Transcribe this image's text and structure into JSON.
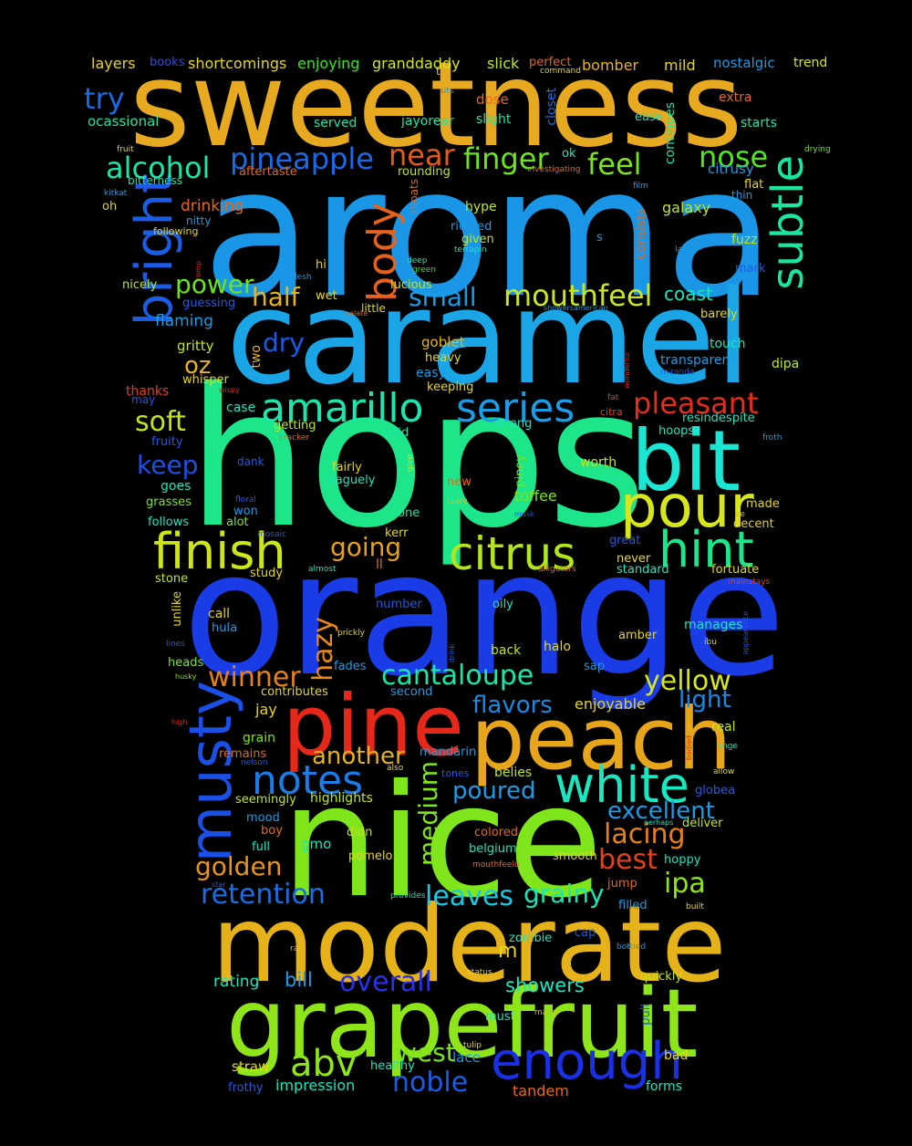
{
  "words": {
    "sweetness": {
      "text": "sweetness",
      "color": "#e6a91f"
    },
    "aroma": {
      "text": "aroma",
      "color": "#1a96e6"
    },
    "caramel": {
      "text": "caramel",
      "color": "#1aa6e6"
    },
    "hops": {
      "text": "hops",
      "color": "#1de68a"
    },
    "orange": {
      "text": "orange",
      "color": "#1a3ce6"
    },
    "nice": {
      "text": "nice",
      "color": "#7ee61a"
    },
    "moderate": {
      "text": "moderate",
      "color": "#e6b21a"
    },
    "grapefruit": {
      "text": "grapefruit",
      "color": "#8ee61a"
    },
    "peach": {
      "text": "peach",
      "color": "#e6a51a"
    },
    "pine": {
      "text": "pine",
      "color": "#e6281a"
    },
    "bit": {
      "text": "bit",
      "color": "#1ae6d3"
    },
    "pour": {
      "text": "pour",
      "color": "#d6e61a"
    },
    "finish": {
      "text": "finish",
      "color": "#cce61a"
    },
    "citrus": {
      "text": "citrus",
      "color": "#b3e61a"
    },
    "hint": {
      "text": "hint",
      "color": "#1ae68c"
    },
    "subtle": {
      "text": "subtle",
      "color": "#1ae6a0"
    },
    "bright": {
      "text": "bright",
      "color": "#1a5ce6"
    },
    "musty": {
      "text": "musty",
      "color": "#1a50e6"
    },
    "white": {
      "text": "white",
      "color": "#1ae6c0"
    },
    "enough": {
      "text": "enough",
      "color": "#1a30e6"
    },
    "amarillo": {
      "text": "amarillo",
      "color": "#1ae6ae"
    },
    "series": {
      "text": "series",
      "color": "#1a9ce6"
    },
    "notes": {
      "text": "notes",
      "color": "#1a7ce6"
    },
    "body": {
      "text": "body",
      "color": "#e6621a"
    },
    "mouthfeel": {
      "text": "mouthfeel",
      "color": "#cce61a"
    },
    "pleasant": {
      "text": "pleasant",
      "color": "#e62c1a"
    },
    "alcohol": {
      "text": "alcohol",
      "color": "#1ae6a6"
    },
    "pineapple": {
      "text": "pineapple",
      "color": "#1a6ae6"
    },
    "finger": {
      "text": "finger",
      "color": "#6ae61a"
    },
    "feel": {
      "text": "feel",
      "color": "#7ae61a"
    },
    "nose": {
      "text": "nose",
      "color": "#52e61a"
    },
    "near": {
      "text": "near",
      "color": "#e65a1a"
    },
    "try": {
      "text": "try",
      "color": "#1a6ae6"
    },
    "abv": {
      "text": "abv",
      "color": "#8ee61a"
    },
    "west": {
      "text": "west",
      "color": "#7ae61a"
    },
    "noble": {
      "text": "noble",
      "color": "#1a5ce6"
    },
    "overall": {
      "text": "overall",
      "color": "#2a30e6"
    },
    "cantaloupe": {
      "text": "cantaloupe",
      "color": "#1ae6a8"
    },
    "yellow": {
      "text": "yellow",
      "color": "#d6e61a"
    },
    "winner": {
      "text": "winner",
      "color": "#e6801a"
    },
    "hazy": {
      "text": "hazy",
      "color": "#e6881a"
    },
    "retention": {
      "text": "retention",
      "color": "#1a6ee6"
    },
    "golden": {
      "text": "golden",
      "color": "#e6941a"
    },
    "lacing": {
      "text": "lacing",
      "color": "#e6801a"
    },
    "excellent": {
      "text": "excellent",
      "color": "#1a9ce6"
    },
    "ipa": {
      "text": "ipa",
      "color": "#8ee61a"
    },
    "leaves": {
      "text": "leaves",
      "color": "#1ac8e6"
    },
    "grainy": {
      "text": "grainy",
      "color": "#1ae6b4"
    },
    "soft": {
      "text": "soft",
      "color": "#c0e61a"
    },
    "keep": {
      "text": "keep",
      "color": "#1a50e6"
    },
    "going": {
      "text": "going",
      "color": "#e6a01a"
    },
    "half": {
      "text": "half",
      "color": "#e6b41a"
    },
    "power": {
      "text": "power",
      "color": "#6ae61a"
    },
    "small": {
      "text": "small",
      "color": "#1a9ce6"
    },
    "dry": {
      "text": "dry",
      "color": "#1a5ce6"
    },
    "medium": {
      "text": "medium",
      "color": "#7ee61a"
    },
    "another": {
      "text": "another",
      "color": "#e6b41a"
    },
    "flavors": {
      "text": "flavors",
      "color": "#1a8ae6"
    },
    "light": {
      "text": "light",
      "color": "#1a8ae6"
    },
    "best": {
      "text": "best",
      "color": "#e6401a"
    },
    "poured": {
      "text": "poured",
      "color": "#1a9ce6"
    },
    "layers": {
      "text": "layers",
      "color": "#e6d61a"
    },
    "books": {
      "text": "books",
      "color": "#2a4ce6"
    },
    "shortcomings": {
      "text": "shortcomings",
      "color": "#e6d61a"
    },
    "enjoying": {
      "text": "enjoying",
      "color": "#3ae61a"
    },
    "granddaddy": {
      "text": "granddaddy",
      "color": "#d6e61a"
    },
    "slick": {
      "text": "slick",
      "color": "#c0e61a"
    },
    "perfect": {
      "text": "perfect",
      "color": "#e6681a"
    },
    "command": {
      "text": "command",
      "color": "#e6d61a"
    },
    "bomber": {
      "text": "bomber",
      "color": "#e6b41a"
    },
    "mild": {
      "text": "mild",
      "color": "#e6d61a"
    },
    "nostalgic": {
      "text": "nostalgic",
      "color": "#1a9ce6"
    },
    "trend": {
      "text": "trend",
      "color": "#d6e61a"
    },
    "ocassional": {
      "text": "ocassional",
      "color": "#1ae6a8"
    },
    "served": {
      "text": "served",
      "color": "#1ae6a8"
    },
    "jayorear": {
      "text": "jayorear",
      "color": "#1ae6a8"
    },
    "dose": {
      "text": "dose",
      "color": "#e6681a"
    },
    "slight": {
      "text": "slight",
      "color": "#1ae6a8"
    },
    "closet": {
      "text": "closet",
      "color": "#1a6ee6"
    },
    "extra": {
      "text": "extra",
      "color": "#e6681a"
    },
    "starts": {
      "text": "starts",
      "color": "#1ae6a8"
    },
    "ease": {
      "text": "ease",
      "color": "#1ae6c0"
    },
    "continues": {
      "text": "continues",
      "color": "#1ae6a8"
    },
    "fruit": {
      "text": "fruit",
      "color": "#e6d61a"
    },
    "bitterness": {
      "text": "bitterness",
      "color": "#1ae6a8"
    },
    "aftertaste": {
      "text": "aftertaste",
      "color": "#e6681a"
    },
    "rounding": {
      "text": "rounding",
      "color": "#c0e61a"
    },
    "investigating": {
      "text": "investigating",
      "color": "#e6681a"
    },
    "drying": {
      "text": "drying",
      "color": "#7ae61a"
    },
    "citrusy": {
      "text": "citrusy",
      "color": "#1a9ce6"
    },
    "flat": {
      "text": "flat",
      "color": "#e6d61a"
    },
    "thin": {
      "text": "thin",
      "color": "#1a9ce6"
    },
    "kitkat": {
      "text": "kitkat",
      "color": "#1a9ce6"
    },
    "oh": {
      "text": "oh",
      "color": "#e6d61a"
    },
    "drinking": {
      "text": "drinking",
      "color": "#e6681a"
    },
    "moats": {
      "text": "moats",
      "color": "#e6681a"
    },
    "hype": {
      "text": "hype",
      "color": "#c0e61a"
    },
    "film": {
      "text": "film",
      "color": "#1a9ce6"
    },
    "consists": {
      "text": "consists",
      "color": "#e6681a"
    },
    "galaxy": {
      "text": "galaxy",
      "color": "#c0e61a"
    },
    "nitty": {
      "text": "nitty",
      "color": "#1a9ce6"
    },
    "following": {
      "text": "following",
      "color": "#e6d61a"
    },
    "riddled": {
      "text": "riddled",
      "color": "#1a9ce6"
    },
    "given": {
      "text": "given",
      "color": "#c0e61a"
    },
    "s": {
      "text": "s",
      "color": "#1a9ce6"
    },
    "fuzz": {
      "text": "fuzz",
      "color": "#c0e61a"
    },
    "terrapin": {
      "text": "terrapin",
      "color": "#1ae6c0"
    },
    "lacks": {
      "text": "lacks",
      "color": "#1a9ce6"
    },
    "hi": {
      "text": "hi",
      "color": "#e6d61a"
    },
    "romp": {
      "text": "romp",
      "color": "#e6281a"
    },
    "deep": {
      "text": "deep",
      "color": "#1ae6a8"
    },
    "green": {
      "text": "green",
      "color": "#3ae61a"
    },
    "mark": {
      "text": "mark",
      "color": "#1a5ce6"
    },
    "flesh": {
      "text": "flesh",
      "color": "#1a9ce6"
    },
    "nicely": {
      "text": "nicely",
      "color": "#c0e61a"
    },
    "wet": {
      "text": "wet",
      "color": "#e6d61a"
    },
    "lucious": {
      "text": "lucious",
      "color": "#c0e61a"
    },
    "guessing": {
      "text": "guessing",
      "color": "#1a5ce6"
    },
    "little": {
      "text": "little",
      "color": "#e6d61a"
    },
    "showersamerican": {
      "text": "showersamerican",
      "color": "#1a9ce6"
    },
    "barely": {
      "text": "barely",
      "color": "#e6d61a"
    },
    "coast": {
      "text": "coast",
      "color": "#1ae6c0"
    },
    "flaming": {
      "text": "flaming",
      "color": "#1a9ce6"
    },
    "gritty": {
      "text": "gritty",
      "color": "#c0e61a"
    },
    "two": {
      "text": "two",
      "color": "#e6b41a"
    },
    "goblet": {
      "text": "goblet",
      "color": "#e6b41a"
    },
    "heavy": {
      "text": "heavy",
      "color": "#e6d61a"
    },
    "wonderful": {
      "text": "wonderful",
      "color": "#e6281a"
    },
    "touch": {
      "text": "touch",
      "color": "#1ae6c0"
    },
    "oz": {
      "text": "oz",
      "color": "#e6b41a"
    },
    "whisper": {
      "text": "whisper",
      "color": "#e6d61a"
    },
    "easy": {
      "text": "easy",
      "color": "#1a9ce6"
    },
    "transparent": {
      "text": "transparent",
      "color": "#1a9ce6"
    },
    "miranda": {
      "text": "miranda",
      "color": "#1a5ce6"
    },
    "dipa": {
      "text": "dipa",
      "color": "#c0e61a"
    },
    "thanks": {
      "text": "thanks",
      "color": "#e6401a"
    },
    "wispy": {
      "text": "wispy",
      "color": "#e6281a"
    },
    "keeping": {
      "text": "keeping",
      "color": "#e6d61a"
    },
    "may": {
      "text": "may",
      "color": "#1a5ce6"
    },
    "case": {
      "text": "case",
      "color": "#1ae6c0"
    },
    "fat": {
      "text": "fat",
      "color": "#e6401a"
    },
    "citra": {
      "text": "citra",
      "color": "#e6401a"
    },
    "resindespite": {
      "text": "resindespite",
      "color": "#1ae6c0"
    },
    "getting": {
      "text": "getting",
      "color": "#c0e61a"
    },
    "strong": {
      "text": "strong",
      "color": "#1ae6c0"
    },
    "hoops": {
      "text": "hoops",
      "color": "#1ae6c0"
    },
    "solid": {
      "text": "solid",
      "color": "#1ae6a8"
    },
    "fruity": {
      "text": "fruity",
      "color": "#1a5ce6"
    },
    "cracker": {
      "text": "cracker",
      "color": "#e6681a"
    },
    "froth": {
      "text": "froth",
      "color": "#1a9ce6"
    },
    "dank": {
      "text": "dank",
      "color": "#1a5ce6"
    },
    "fairly": {
      "text": "fairly",
      "color": "#e6d61a"
    },
    "give": {
      "text": "give",
      "color": "#c0e61a"
    },
    "piney": {
      "text": "piney",
      "color": "#7ae61a"
    },
    "worth": {
      "text": "worth",
      "color": "#c0e61a"
    },
    "vaguely": {
      "text": "vaguely",
      "color": "#1ae6c0"
    },
    "new": {
      "text": "new",
      "color": "#e6681a"
    },
    "short": {
      "text": "short",
      "color": "#1ae6c0"
    },
    "grasses": {
      "text": "grasses",
      "color": "#7ae61a"
    },
    "goes": {
      "text": "goes",
      "color": "#1ae6c0"
    },
    "floral": {
      "text": "floral",
      "color": "#1a5ce6"
    },
    "won": {
      "text": "won",
      "color": "#1a9ce6"
    },
    "tasty": {
      "text": "tasty",
      "color": "#e6b41a"
    },
    "toffee": {
      "text": "toffee",
      "color": "#7ae61a"
    },
    "made": {
      "text": "made",
      "color": "#e6d61a"
    },
    "follows": {
      "text": "follows",
      "color": "#1ae6c0"
    },
    "alot": {
      "text": "alot",
      "color": "#7ae61a"
    },
    "one": {
      "text": "one",
      "color": "#1ae6a8"
    },
    "musk": {
      "text": "musk",
      "color": "#1a5ce6"
    },
    "ve": {
      "text": "ve",
      "color": "#e6b41a"
    },
    "decent": {
      "text": "decent",
      "color": "#e6d61a"
    },
    "mosaic": {
      "text": "mosaic",
      "color": "#1a5ce6"
    },
    "kerr": {
      "text": "kerr",
      "color": "#e6d61a"
    },
    "great": {
      "text": "great",
      "color": "#1a5ce6"
    },
    "stone": {
      "text": "stone",
      "color": "#c0e61a"
    },
    "study": {
      "text": "study",
      "color": "#e6d61a"
    },
    "almost": {
      "text": "almost",
      "color": "#1ae6c0"
    },
    "ll": {
      "text": "ll",
      "color": "#e6681a"
    },
    "alligators": {
      "text": "alligators",
      "color": "#e6681a"
    },
    "standard": {
      "text": "standard",
      "color": "#1ae6c0"
    },
    "never": {
      "text": "never",
      "color": "#e6d61a"
    },
    "fortuate": {
      "text": "fortuate",
      "color": "#e6d61a"
    },
    "mainstays": {
      "text": "mainstays",
      "color": "#e6401a"
    },
    "unlike": {
      "text": "unlike",
      "color": "#e6d61a"
    },
    "number": {
      "text": "number",
      "color": "#1a5ce6"
    },
    "oily": {
      "text": "oily",
      "color": "#1ae6c0"
    },
    "call": {
      "text": "call",
      "color": "#e6d61a"
    },
    "hula": {
      "text": "hula",
      "color": "#1a9ce6"
    },
    "prickly": {
      "text": "prickly",
      "color": "#e6d61a"
    },
    "manages": {
      "text": "manages",
      "color": "#1ae6c0"
    },
    "appearance": {
      "text": "appearance",
      "color": "#1a5ce6"
    },
    "amber": {
      "text": "amber",
      "color": "#e6d61a"
    },
    "ibu": {
      "text": "ibu",
      "color": "#e6d61a"
    },
    "lines": {
      "text": "lines",
      "color": "#1a5ce6"
    },
    "drink": {
      "text": "drink",
      "color": "#1a5ce6"
    },
    "halo": {
      "text": "halo",
      "color": "#e6d61a"
    },
    "back": {
      "text": "back",
      "color": "#c0e61a"
    },
    "heads": {
      "text": "heads",
      "color": "#7ae61a"
    },
    "fades": {
      "text": "fades",
      "color": "#1a9ce6"
    },
    "husky": {
      "text": "husky",
      "color": "#7ae61a"
    },
    "sap": {
      "text": "sap",
      "color": "#1a9ce6"
    },
    "contributes": {
      "text": "contributes",
      "color": "#e6d61a"
    },
    "second": {
      "text": "second",
      "color": "#1a9ce6"
    },
    "enjoyable": {
      "text": "enjoyable",
      "color": "#e6d61a"
    },
    "jay": {
      "text": "jay",
      "color": "#e6d61a"
    },
    "high": {
      "text": "high",
      "color": "#e6281a"
    },
    "grain": {
      "text": "grain",
      "color": "#7ae61a"
    },
    "real": {
      "text": "real",
      "color": "#c0e61a"
    },
    "tinge": {
      "text": "tinge",
      "color": "#1ae6c0"
    },
    "remains": {
      "text": "remains",
      "color": "#e6681a"
    },
    "nelson": {
      "text": "nelson",
      "color": "#1a5ce6"
    },
    "bodied": {
      "text": "bodied",
      "color": "#e6281a"
    },
    "mandarin": {
      "text": "mandarin",
      "color": "#1a9ce6"
    },
    "also": {
      "text": "also",
      "color": "#e6d61a"
    },
    "tones": {
      "text": "tones",
      "color": "#1a5ce6"
    },
    "belies": {
      "text": "belies",
      "color": "#c0e61a"
    },
    "allow": {
      "text": "allow",
      "color": "#e6d61a"
    },
    "globea": {
      "text": "globea",
      "color": "#1a5ce6"
    },
    "seemingly": {
      "text": "seemingly",
      "color": "#c0e61a"
    },
    "highlights": {
      "text": "highlights",
      "color": "#c0e61a"
    },
    "mood": {
      "text": "mood",
      "color": "#1a9ce6"
    },
    "boy": {
      "text": "boy",
      "color": "#e6681a"
    },
    "didn": {
      "text": "didn",
      "color": "#c0e61a"
    },
    "colored": {
      "text": "colored",
      "color": "#e6681a"
    },
    "perhaps": {
      "text": "perhaps",
      "color": "#1ae6c0"
    },
    "deliver": {
      "text": "deliver",
      "color": "#c0e61a"
    },
    "full": {
      "text": "full",
      "color": "#1ae6c0"
    },
    "gmo": {
      "text": "gmo",
      "color": "#1ae6c0"
    },
    "belgium": {
      "text": "belgium",
      "color": "#1ae6c0"
    },
    "pomelo": {
      "text": "pomelo",
      "color": "#e6d61a"
    },
    "smooth": {
      "text": "smooth",
      "color": "#e6d61a"
    },
    "mouthfeelo": {
      "text": "mouthfeelo",
      "color": "#e6681a"
    },
    "hoppy": {
      "text": "hoppy",
      "color": "#1ae6c0"
    },
    "star": {
      "text": "star",
      "color": "#1a5ce6"
    },
    "jump": {
      "text": "jump",
      "color": "#e6681a"
    },
    "provides": {
      "text": "provides",
      "color": "#1ae6a8"
    },
    "filled": {
      "text": "filled",
      "color": "#1a9ce6"
    },
    "built": {
      "text": "built",
      "color": "#e6d61a"
    },
    "m": {
      "text": "m",
      "color": "#e6d61a"
    },
    "raw": {
      "text": "raw",
      "color": "#e6b41a"
    },
    "zombie": {
      "text": "zombie",
      "color": "#1ae6c0"
    },
    "cap": {
      "text": "cap",
      "color": "#1a5ce6"
    },
    "bottled": {
      "text": "bottled",
      "color": "#1a9ce6"
    },
    "rating": {
      "text": "rating",
      "color": "#1ae6c0"
    },
    "bill": {
      "text": "bill",
      "color": "#1a9ce6"
    },
    "status": {
      "text": "status",
      "color": "#e6d61a"
    },
    "showers": {
      "text": "showers",
      "color": "#1ae6c0"
    },
    "quickly": {
      "text": "quickly",
      "color": "#c0e61a"
    },
    "malty": {
      "text": "malty",
      "color": "#e6b41a"
    },
    "must": {
      "text": "must",
      "color": "#1ae6c0"
    },
    "pull": {
      "text": "pull",
      "color": "#1a5ce6"
    },
    "tulip": {
      "text": "tulip",
      "color": "#e6d61a"
    },
    "straw": {
      "text": "straw",
      "color": "#e6d61a"
    },
    "healthy": {
      "text": "healthy",
      "color": "#1ae6c0"
    },
    "lace": {
      "text": "lace",
      "color": "#1a9ce6"
    },
    "bad": {
      "text": "bad",
      "color": "#e6d61a"
    },
    "frothy": {
      "text": "frothy",
      "color": "#1a5ce6"
    },
    "impression": {
      "text": "impression",
      "color": "#1ae6c0"
    },
    "tandem": {
      "text": "tandem",
      "color": "#e6681a"
    },
    "forms": {
      "text": "forms",
      "color": "#1ae6c0"
    },
    "ok": {
      "text": "ok",
      "color": "#1ae6c0"
    },
    "palate": {
      "text": "palate",
      "color": "#e6681a"
    },
    "sits": {
      "text": "sits",
      "color": "#1a9ce6"
    },
    "t": {
      "text": "t",
      "color": "#e6d61a"
    }
  }
}
